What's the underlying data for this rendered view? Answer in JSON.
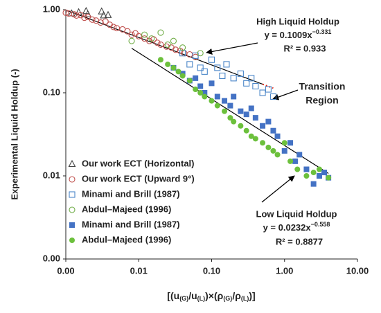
{
  "chart_data": {
    "type": "scatter",
    "xlabel": [
      "[(u",
      "(G)",
      "/u",
      "(L)",
      ")×(ρ",
      "(G)",
      "/ρ",
      "(L)",
      ")]"
    ],
    "ylabel": "Experimental Liquid Holdup (-)",
    "xlog": true,
    "ylog": true,
    "xlim": [
      0.001,
      10
    ],
    "ylim": [
      0.001,
      1
    ],
    "xticks": [
      {
        "value": 0.001,
        "label": "0.00"
      },
      {
        "value": 0.01,
        "label": "0.01"
      },
      {
        "value": 0.1,
        "label": "0.10"
      },
      {
        "value": 1,
        "label": "1.00"
      },
      {
        "value": 10,
        "label": "10.00"
      }
    ],
    "yticks": [
      {
        "value": 0.001,
        "label": "0.00"
      },
      {
        "value": 0.01,
        "label": "0.01"
      },
      {
        "value": 0.1,
        "label": "0.10"
      },
      {
        "value": 1,
        "label": "1.00"
      }
    ],
    "legend": "lower left",
    "series": [
      {
        "name": "Our work ECT (Horizontal)",
        "marker": "triangle-open",
        "color": "#444444",
        "x": [
          0.0012,
          0.0015,
          0.0019,
          0.002,
          0.0031,
          0.0033,
          0.0038
        ],
        "values": [
          0.9,
          0.93,
          0.96,
          0.88,
          0.95,
          0.85,
          0.86
        ]
      },
      {
        "name": "Our work ECT (Upward 9°)",
        "marker": "circle-open",
        "color": "#c0504d",
        "x": [
          0.001,
          0.0011,
          0.0013,
          0.0014,
          0.0016,
          0.0018,
          0.002,
          0.0023,
          0.0026,
          0.003,
          0.0035,
          0.004,
          0.0045,
          0.005,
          0.006,
          0.007,
          0.008,
          0.009,
          0.01,
          0.012,
          0.014,
          0.016,
          0.018,
          0.02,
          0.024,
          0.028,
          0.032,
          0.037,
          0.042,
          0.05,
          0.06
        ],
        "values": [
          0.92,
          0.9,
          0.88,
          0.85,
          0.86,
          0.8,
          0.82,
          0.76,
          0.74,
          0.7,
          0.72,
          0.66,
          0.62,
          0.6,
          0.58,
          0.55,
          0.5,
          0.52,
          0.48,
          0.45,
          0.42,
          0.44,
          0.4,
          0.38,
          0.36,
          0.35,
          0.33,
          0.32,
          0.3,
          0.29,
          0.27
        ]
      },
      {
        "name": "Minami and Brill (1987)",
        "marker": "square-open",
        "color": "#4a86c8",
        "x": [
          0.04,
          0.05,
          0.06,
          0.07,
          0.08,
          0.1,
          0.12,
          0.14,
          0.16,
          0.2,
          0.25,
          0.3,
          0.35,
          0.4,
          0.5,
          0.6,
          0.7
        ],
        "values": [
          0.3,
          0.22,
          0.28,
          0.2,
          0.18,
          0.25,
          0.2,
          0.16,
          0.22,
          0.15,
          0.17,
          0.13,
          0.15,
          0.12,
          0.1,
          0.11,
          0.09
        ]
      },
      {
        "name": "Abdul–Majeed (1996)",
        "marker": "circle-open",
        "color": "#70ad47",
        "x": [
          0.008,
          0.012,
          0.015,
          0.02,
          0.025,
          0.03,
          0.04,
          0.07
        ],
        "values": [
          0.42,
          0.5,
          0.45,
          0.53,
          0.38,
          0.42,
          0.35,
          0.3
        ]
      },
      {
        "name": "Minami and Brill (1987)",
        "marker": "square",
        "color": "#4472c4",
        "x": [
          0.03,
          0.04,
          0.05,
          0.06,
          0.07,
          0.08,
          0.1,
          0.12,
          0.15,
          0.18,
          0.2,
          0.25,
          0.3,
          0.35,
          0.4,
          0.5,
          0.6,
          0.7,
          0.8,
          1.0,
          1.2,
          1.4,
          1.6,
          2,
          2.5,
          3,
          3.5,
          4
        ],
        "values": [
          0.2,
          0.17,
          0.14,
          0.15,
          0.12,
          0.1,
          0.13,
          0.09,
          0.08,
          0.07,
          0.09,
          0.06,
          0.055,
          0.065,
          0.05,
          0.04,
          0.045,
          0.035,
          0.03,
          0.02,
          0.025,
          0.015,
          0.018,
          0.012,
          0.008,
          0.01,
          0.011,
          0.0095
        ]
      },
      {
        "name": "Abdul–Majeed (1996)",
        "marker": "circle",
        "color": "#6cc03c",
        "x": [
          0.02,
          0.025,
          0.03,
          0.035,
          0.04,
          0.05,
          0.06,
          0.07,
          0.08,
          0.1,
          0.12,
          0.15,
          0.18,
          0.2,
          0.25,
          0.3,
          0.35,
          0.4,
          0.5,
          0.6,
          0.7,
          0.8,
          1,
          1.2,
          1.5,
          2,
          2.5,
          3,
          4
        ],
        "values": [
          0.25,
          0.22,
          0.2,
          0.18,
          0.16,
          0.14,
          0.11,
          0.1,
          0.09,
          0.08,
          0.07,
          0.06,
          0.05,
          0.045,
          0.04,
          0.035,
          0.03,
          0.028,
          0.025,
          0.022,
          0.02,
          0.018,
          0.025,
          0.015,
          0.012,
          0.01,
          0.011,
          0.012,
          0.0095
        ]
      }
    ],
    "fits": [
      {
        "a": 0.1009,
        "b": -0.331,
        "x": [
          0.001,
          0.5
        ],
        "color": "#000000",
        "dash": false
      },
      {
        "a": 0.1009,
        "b": -0.331,
        "x": [
          0.5,
          0.7
        ],
        "color": "#e03020",
        "dash": true
      },
      {
        "a": 0.0232,
        "b": -0.558,
        "x": [
          0.008,
          4
        ],
        "color": "#000000",
        "dash": false
      }
    ],
    "annotations": {
      "high_title": "High Liquid Holdup",
      "high_eq": "y = 0.1009x",
      "high_exp": "−0.331",
      "high_r2": "R² = 0.933",
      "transition_1": "Transition",
      "transition_2": "Region",
      "low_title": "Low Liquid Holdup",
      "low_eq": "y = 0.0232x",
      "low_exp": "−0.558",
      "low_r2": "R² = 0.8877"
    }
  }
}
